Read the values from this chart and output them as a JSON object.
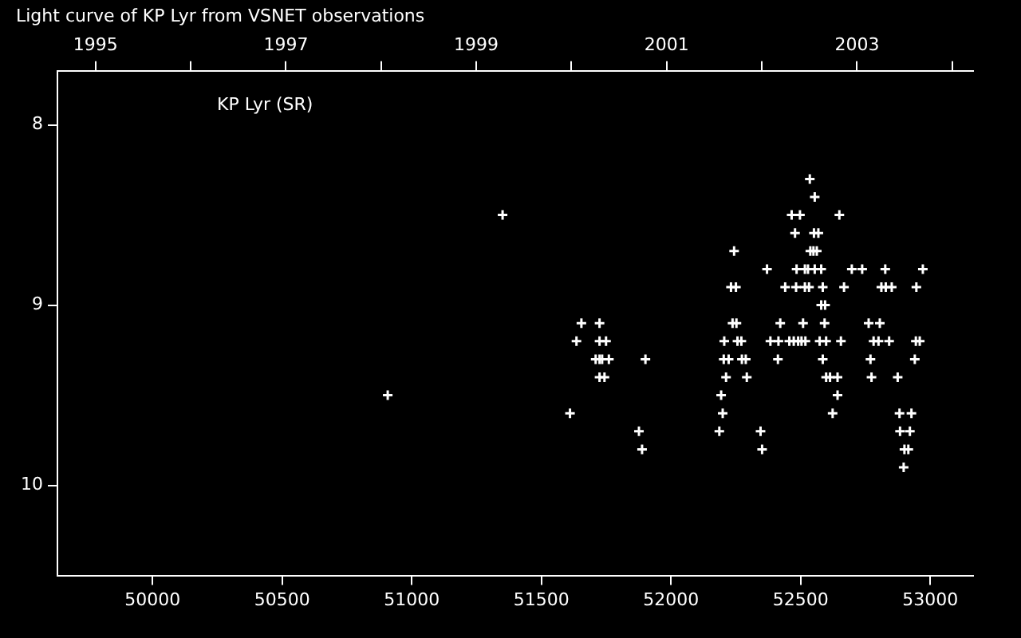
{
  "chart_data": {
    "type": "scatter",
    "title": "Light curve of KP Lyr from VSNET observations",
    "annotations": [
      "KP Lyr (SR)"
    ],
    "xlim": [
      49633,
      53165
    ],
    "xticks": [
      50000,
      50500,
      51000,
      51500,
      52000,
      52500,
      53000
    ],
    "x2lim": [
      1994.6,
      2004.22
    ],
    "x2ticks": [
      1995,
      {
        "value": 1996,
        "label": null
      },
      1997,
      {
        "value": 1998,
        "label": null
      },
      1999,
      {
        "value": 2000,
        "label": null
      },
      2001,
      {
        "value": 2002,
        "label": null
      },
      2003,
      {
        "value": 2004,
        "label": null
      }
    ],
    "ylim": [
      10.5,
      7.7
    ],
    "yticks": [
      8,
      9,
      10
    ],
    "grid": false,
    "legend": false,
    "marker": "cross",
    "series": [
      {
        "color": "#ffffff",
        "x": [
          50907,
          51350,
          51610,
          51635,
          51654,
          51709,
          51724,
          51724,
          51724,
          51724,
          51734,
          51743,
          51749,
          51760,
          51876,
          51888,
          51901,
          52186,
          52193,
          52199,
          52203,
          52205,
          52212,
          52222,
          52231,
          52237,
          52243,
          52250,
          52252,
          52256,
          52271,
          52273,
          52288,
          52292,
          52345,
          52351,
          52370,
          52383,
          52412,
          52414,
          52421,
          52440,
          52456,
          52465,
          52473,
          52478,
          52482,
          52484,
          52490,
          52497,
          52503,
          52509,
          52516,
          52516,
          52518,
          52528,
          52532,
          52535,
          52537,
          52549,
          52551,
          52554,
          52554,
          52562,
          52568,
          52573,
          52579,
          52579,
          52585,
          52585,
          52592,
          52594,
          52598,
          52598,
          52613,
          52623,
          52642,
          52642,
          52649,
          52655,
          52667,
          52697,
          52737,
          52762,
          52769,
          52773,
          52781,
          52800,
          52805,
          52811,
          52826,
          52828,
          52841,
          52851,
          52874,
          52881,
          52883,
          52897,
          52900,
          52915,
          52921,
          52927,
          52940,
          52944,
          52946,
          52959,
          52971
        ],
        "values": [
          9.5,
          8.5,
          9.6,
          9.2,
          9.1,
          9.3,
          9.1,
          9.2,
          9.3,
          9.4,
          9.3,
          9.4,
          9.2,
          9.3,
          9.7,
          9.8,
          9.3,
          9.7,
          9.5,
          9.6,
          9.3,
          9.2,
          9.4,
          9.3,
          8.9,
          9.1,
          8.7,
          8.9,
          9.1,
          9.2,
          9.2,
          9.3,
          9.3,
          9.4,
          9.7,
          9.8,
          8.8,
          9.2,
          9.3,
          9.2,
          9.1,
          8.9,
          9.2,
          8.5,
          9.2,
          8.6,
          8.9,
          8.8,
          9.2,
          8.5,
          9.2,
          9.1,
          8.8,
          8.9,
          9.2,
          8.8,
          8.9,
          8.3,
          8.7,
          8.7,
          8.6,
          8.4,
          8.8,
          8.7,
          8.6,
          9.2,
          8.8,
          9.0,
          8.9,
          9.3,
          9.1,
          9.0,
          9.2,
          9.4,
          9.4,
          9.6,
          9.4,
          9.5,
          8.5,
          9.2,
          8.9,
          8.8,
          8.8,
          9.1,
          9.3,
          9.4,
          9.2,
          9.2,
          9.1,
          8.9,
          8.8,
          8.9,
          9.2,
          8.9,
          9.4,
          9.6,
          9.7,
          9.9,
          9.8,
          9.8,
          9.7,
          9.6,
          9.3,
          9.2,
          8.9,
          9.2,
          8.8
        ]
      }
    ]
  }
}
